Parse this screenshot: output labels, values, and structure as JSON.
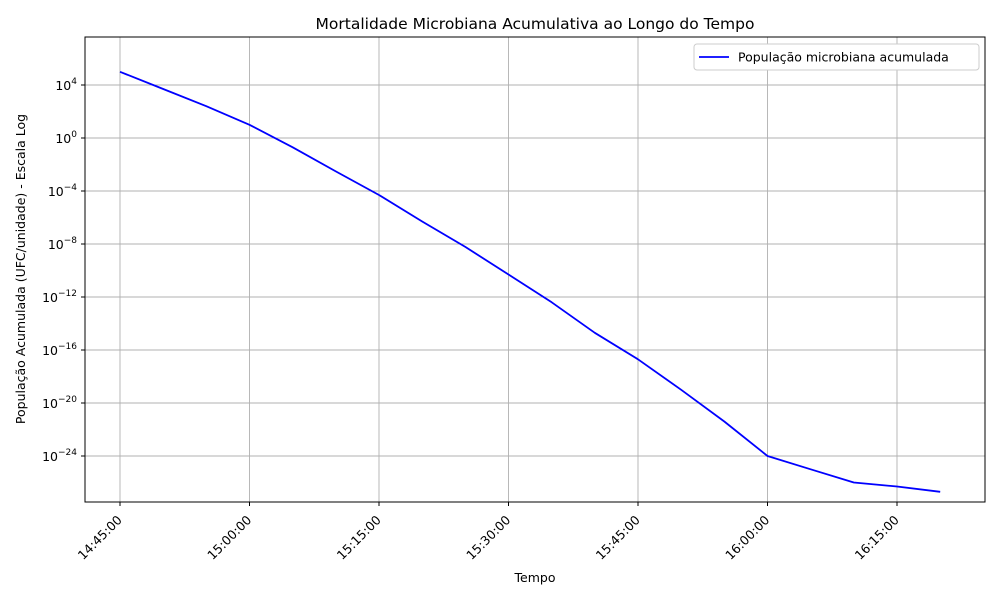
{
  "chart_data": {
    "type": "line",
    "title": "Mortalidade Microbiana Acumulativa ao Longo do Tempo",
    "xlabel": "Tempo",
    "ylabel": "População Acumulada (UFC/unidade) - Escala Log",
    "y_scale": "log",
    "grid": true,
    "legend_placement": "top-right",
    "line_color": "#0000ff",
    "x_ticks": [
      "14:45:00",
      "15:00:00",
      "15:15:00",
      "15:30:00",
      "15:45:00",
      "16:00:00",
      "16:15:00"
    ],
    "y_ticks": [
      {
        "base": "10",
        "exp": "4",
        "value": 10000.0
      },
      {
        "base": "10",
        "exp": "0",
        "value": 1
      },
      {
        "base": "10",
        "exp": "−4",
        "value": 0.0001
      },
      {
        "base": "10",
        "exp": "−8",
        "value": 1e-08
      },
      {
        "base": "10",
        "exp": "−12",
        "value": 1e-12
      },
      {
        "base": "10",
        "exp": "−16",
        "value": 1e-16
      },
      {
        "base": "10",
        "exp": "−20",
        "value": 1e-20
      },
      {
        "base": "10",
        "exp": "−24",
        "value": 1e-24
      }
    ],
    "series": [
      {
        "name": "População microbiana acumulada",
        "x": [
          "14:45:00",
          "14:50:00",
          "14:55:00",
          "15:00:00",
          "15:05:00",
          "15:10:00",
          "15:15:00",
          "15:20:00",
          "15:25:00",
          "15:30:00",
          "15:35:00",
          "15:40:00",
          "15:45:00",
          "15:50:00",
          "15:55:00",
          "16:00:00",
          "16:05:00",
          "16:10:00",
          "16:15:00",
          "16:20:00"
        ],
        "y": [
          100000.0,
          5000.0,
          250.0,
          10.0,
          0.2,
          0.003,
          5e-05,
          5e-07,
          6e-09,
          5e-11,
          4e-13,
          2e-15,
          2e-17,
          1e-19,
          4e-22,
          1e-24,
          1e-25,
          1e-26,
          5e-27,
          2e-27
        ]
      }
    ]
  }
}
